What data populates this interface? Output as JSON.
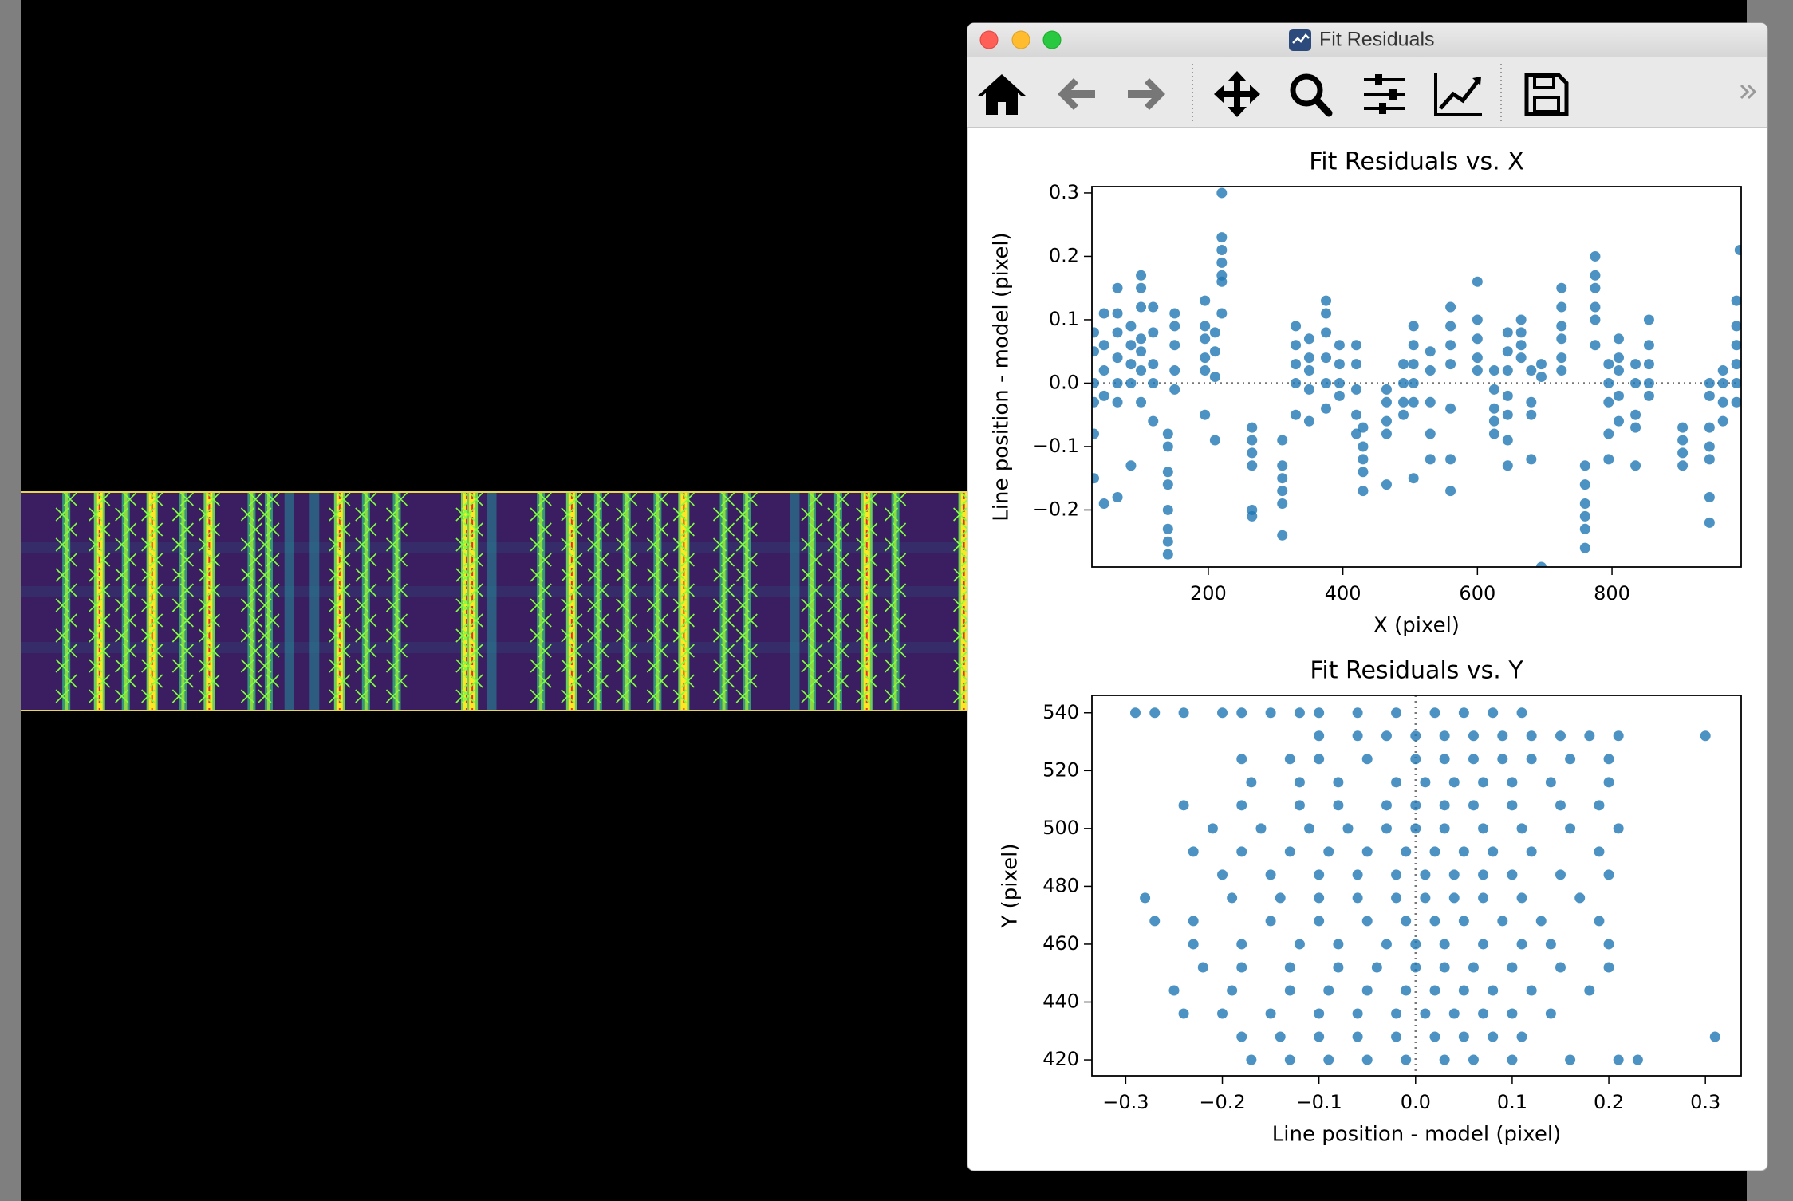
{
  "window": {
    "title": "Fit Residuals"
  },
  "chart_data": [
    {
      "type": "scatter",
      "title": "Fit Residuals vs. X",
      "x_label": "X (pixel)",
      "y_label": "Line position - model (pixel)",
      "color": "#1f77b4",
      "xlim": [
        27,
        992
      ],
      "ylim": [
        -0.29,
        0.31
      ],
      "xticks": [
        200,
        400,
        600,
        800
      ],
      "yticks": [
        {
          "value": -0.2,
          "label": "−0.2"
        },
        {
          "value": -0.1,
          "label": "−0.1"
        },
        {
          "value": 0,
          "label": "0.0"
        },
        0.1,
        0.2,
        0.3
      ],
      "hline": 0,
      "x": [
        30,
        30,
        30,
        30,
        30,
        30,
        45,
        45,
        45,
        45,
        45,
        65,
        65,
        65,
        65,
        65,
        65,
        65,
        85,
        85,
        85,
        85,
        85,
        100,
        100,
        100,
        100,
        100,
        100,
        100,
        118,
        118,
        118,
        118,
        118,
        140,
        140,
        140,
        140,
        140,
        140,
        140,
        140,
        150,
        150,
        150,
        150,
        150,
        195,
        195,
        195,
        195,
        195,
        195,
        210,
        210,
        210,
        210,
        220,
        220,
        220,
        220,
        220,
        220,
        220,
        265,
        265,
        265,
        265,
        265,
        265,
        310,
        310,
        310,
        310,
        310,
        310,
        330,
        330,
        330,
        330,
        330,
        350,
        350,
        350,
        350,
        350,
        375,
        375,
        375,
        375,
        375,
        375,
        395,
        395,
        395,
        395,
        420,
        420,
        420,
        420,
        420,
        430,
        430,
        430,
        430,
        430,
        465,
        465,
        465,
        465,
        465,
        490,
        490,
        490,
        490,
        505,
        505,
        505,
        505,
        505,
        505,
        530,
        530,
        530,
        530,
        530,
        560,
        560,
        560,
        560,
        560,
        560,
        560,
        600,
        600,
        600,
        600,
        600,
        625,
        625,
        625,
        625,
        625,
        645,
        645,
        645,
        645,
        645,
        645,
        645,
        665,
        665,
        665,
        665,
        680,
        680,
        680,
        680,
        695,
        695,
        695,
        725,
        725,
        725,
        725,
        725,
        725,
        760,
        760,
        760,
        760,
        760,
        760,
        775,
        775,
        775,
        775,
        775,
        775,
        795,
        795,
        795,
        795,
        795,
        810,
        810,
        810,
        810,
        810,
        835,
        835,
        835,
        835,
        835,
        855,
        855,
        855,
        855,
        855,
        905,
        905,
        905,
        905,
        945,
        945,
        945,
        945,
        945,
        945,
        945,
        965,
        965,
        965,
        965,
        985,
        985,
        985,
        985,
        985,
        985,
        990
      ],
      "values": [
        0.08,
        0.05,
        0,
        -0.03,
        -0.08,
        -0.15,
        0.11,
        0.06,
        0.02,
        -0.02,
        -0.19,
        0.15,
        0.11,
        0.08,
        0.04,
        0,
        -0.03,
        -0.18,
        0.09,
        0.06,
        0.03,
        0,
        -0.13,
        0.17,
        0.15,
        0.12,
        0.07,
        0.05,
        0.02,
        -0.03,
        0.12,
        0.08,
        0.03,
        0,
        -0.06,
        -0.08,
        -0.1,
        -0.14,
        -0.16,
        -0.2,
        -0.23,
        -0.25,
        -0.27,
        0.11,
        0.09,
        0.06,
        0.02,
        -0.01,
        0.13,
        0.09,
        0.07,
        0.04,
        0.02,
        -0.05,
        0.08,
        0.05,
        0.01,
        -0.09,
        0.3,
        0.23,
        0.21,
        0.19,
        0.17,
        0.16,
        0.11,
        -0.07,
        -0.09,
        -0.11,
        -0.13,
        -0.2,
        -0.21,
        -0.09,
        -0.13,
        -0.15,
        -0.17,
        -0.19,
        -0.24,
        0.09,
        0.06,
        0.03,
        0,
        -0.05,
        0.07,
        0.04,
        0.02,
        -0.01,
        -0.06,
        0.13,
        0.11,
        0.08,
        0.04,
        0,
        -0.04,
        0.06,
        0.03,
        0,
        -0.02,
        0.06,
        0.03,
        -0.01,
        -0.05,
        -0.08,
        -0.07,
        -0.1,
        -0.12,
        -0.14,
        -0.17,
        -0.01,
        -0.03,
        -0.06,
        -0.08,
        -0.16,
        0.03,
        0,
        -0.03,
        -0.05,
        0.09,
        0.06,
        0.03,
        0,
        -0.03,
        -0.15,
        0.05,
        0.02,
        -0.03,
        -0.08,
        -0.12,
        0.12,
        0.09,
        0.06,
        0.03,
        -0.04,
        -0.12,
        -0.17,
        0.16,
        0.1,
        0.07,
        0.04,
        0.02,
        0.02,
        -0.01,
        -0.04,
        -0.06,
        -0.08,
        0.08,
        0.05,
        0.02,
        -0.02,
        -0.05,
        -0.09,
        -0.13,
        0.1,
        0.08,
        0.06,
        0.04,
        0.02,
        -0.03,
        -0.05,
        -0.12,
        0.01,
        0.03,
        -0.29,
        0.15,
        0.12,
        0.09,
        0.07,
        0.04,
        0.02,
        -0.13,
        -0.16,
        -0.19,
        -0.21,
        -0.23,
        -0.26,
        0.2,
        0.17,
        0.15,
        0.12,
        0.1,
        0.06,
        0.03,
        0,
        -0.03,
        -0.08,
        -0.12,
        0.07,
        0.04,
        0.02,
        -0.02,
        -0.06,
        0.03,
        0,
        -0.05,
        -0.07,
        -0.13,
        0.1,
        0.06,
        0.03,
        0,
        -0.02,
        -0.07,
        -0.09,
        -0.11,
        -0.13,
        0,
        -0.02,
        -0.07,
        -0.1,
        -0.12,
        -0.18,
        -0.22,
        0.02,
        0,
        -0.03,
        -0.06,
        0.13,
        0.09,
        0.06,
        0.03,
        0,
        -0.03,
        0.21
      ]
    },
    {
      "type": "scatter",
      "title": "Fit Residuals vs. Y",
      "x_label": "Line position - model (pixel)",
      "y_label": "Y (pixel)",
      "color": "#1f77b4",
      "xlim": [
        -0.335,
        0.337
      ],
      "ylim": [
        414.5,
        546
      ],
      "xticks": [
        {
          "value": -0.3,
          "label": "−0.3"
        },
        {
          "value": -0.2,
          "label": "−0.2"
        },
        {
          "value": -0.1,
          "label": "−0.1"
        },
        {
          "value": 0,
          "label": "0.0"
        },
        0.1,
        0.2,
        0.3
      ],
      "yticks": [
        420,
        440,
        460,
        480,
        500,
        520,
        540
      ],
      "vline": 0,
      "x": [
        -0.29,
        -0.27,
        -0.24,
        -0.2,
        -0.18,
        -0.15,
        -0.12,
        -0.1,
        -0.06,
        -0.02,
        0.02,
        0.05,
        0.08,
        0.11,
        -0.1,
        -0.06,
        -0.03,
        0,
        0.03,
        0.06,
        0.09,
        0.12,
        0.15,
        0.18,
        0.21,
        0.3,
        -0.18,
        -0.13,
        -0.1,
        -0.05,
        0,
        0.03,
        0.06,
        0.09,
        0.12,
        0.16,
        0.2,
        -0.17,
        -0.12,
        -0.08,
        -0.02,
        0.01,
        0.04,
        0.07,
        0.1,
        0.14,
        0.2,
        -0.24,
        -0.18,
        -0.12,
        -0.08,
        -0.03,
        0,
        0.03,
        0.06,
        0.1,
        0.15,
        0.19,
        -0.21,
        -0.16,
        -0.11,
        -0.07,
        -0.03,
        0,
        0.03,
        0.07,
        0.11,
        0.16,
        0.21,
        -0.23,
        -0.18,
        -0.13,
        -0.09,
        -0.05,
        -0.01,
        0.02,
        0.05,
        0.08,
        0.12,
        0.19,
        -0.2,
        -0.15,
        -0.1,
        -0.06,
        -0.02,
        0.01,
        0.04,
        0.07,
        0.1,
        0.15,
        0.2,
        -0.28,
        -0.19,
        -0.14,
        -0.1,
        -0.06,
        -0.02,
        0.01,
        0.04,
        0.07,
        0.11,
        0.17,
        -0.27,
        -0.23,
        -0.15,
        -0.1,
        -0.05,
        -0.01,
        0.02,
        0.05,
        0.09,
        0.13,
        0.19,
        -0.23,
        -0.18,
        -0.12,
        -0.08,
        -0.03,
        0,
        0.03,
        0.07,
        0.11,
        0.14,
        0.2,
        -0.22,
        -0.18,
        -0.13,
        -0.08,
        -0.04,
        0,
        0.03,
        0.06,
        0.1,
        0.15,
        0.2,
        -0.25,
        -0.19,
        -0.13,
        -0.09,
        -0.05,
        -0.01,
        0.02,
        0.05,
        0.08,
        0.12,
        0.18,
        -0.24,
        -0.2,
        -0.15,
        -0.1,
        -0.06,
        -0.02,
        0.01,
        0.04,
        0.07,
        0.1,
        0.14,
        -0.18,
        -0.14,
        -0.1,
        -0.06,
        -0.02,
        0.02,
        0.05,
        0.08,
        0.11,
        0.31,
        -0.17,
        -0.13,
        -0.09,
        -0.05,
        -0.01,
        0.03,
        0.06,
        0.1,
        0.16,
        0.21,
        0.23
      ],
      "values": [
        540,
        540,
        540,
        540,
        540,
        540,
        540,
        540,
        540,
        540,
        540,
        540,
        540,
        540,
        532,
        532,
        532,
        532,
        532,
        532,
        532,
        532,
        532,
        532,
        532,
        532,
        524,
        524,
        524,
        524,
        524,
        524,
        524,
        524,
        524,
        524,
        524,
        516,
        516,
        516,
        516,
        516,
        516,
        516,
        516,
        516,
        516,
        508,
        508,
        508,
        508,
        508,
        508,
        508,
        508,
        508,
        508,
        508,
        500,
        500,
        500,
        500,
        500,
        500,
        500,
        500,
        500,
        500,
        500,
        492,
        492,
        492,
        492,
        492,
        492,
        492,
        492,
        492,
        492,
        492,
        484,
        484,
        484,
        484,
        484,
        484,
        484,
        484,
        484,
        484,
        484,
        476,
        476,
        476,
        476,
        476,
        476,
        476,
        476,
        476,
        476,
        476,
        468,
        468,
        468,
        468,
        468,
        468,
        468,
        468,
        468,
        468,
        468,
        460,
        460,
        460,
        460,
        460,
        460,
        460,
        460,
        460,
        460,
        460,
        452,
        452,
        452,
        452,
        452,
        452,
        452,
        452,
        452,
        452,
        452,
        444,
        444,
        444,
        444,
        444,
        444,
        444,
        444,
        444,
        444,
        444,
        436,
        436,
        436,
        436,
        436,
        436,
        436,
        436,
        436,
        436,
        436,
        428,
        428,
        428,
        428,
        428,
        428,
        428,
        428,
        428,
        428,
        420,
        420,
        420,
        420,
        420,
        420,
        420,
        420,
        420,
        420,
        420
      ]
    }
  ]
}
